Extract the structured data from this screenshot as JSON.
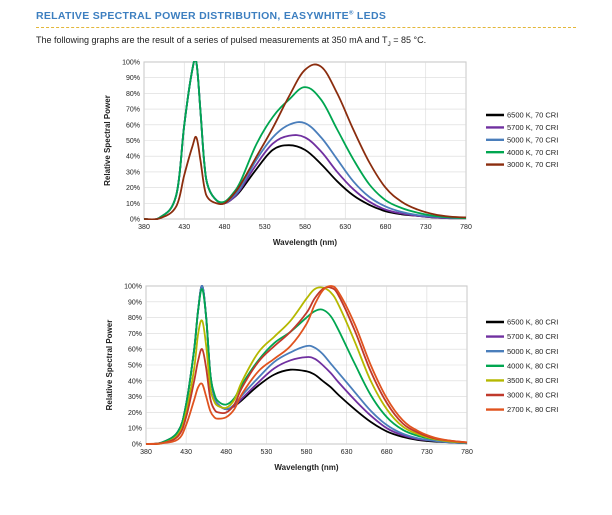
{
  "header": {
    "title_main": "RELATIVE SPECTRAL POWER DISTRIBUTION, EASYWHITE",
    "title_reg": "®",
    "title_tail": " LEDS",
    "intro_main": "The following graphs are the result of a series of pulsed measurements at 350 mA and T",
    "intro_sub": "J",
    "intro_tail": " = 85 °C.",
    "title_color": "#3d7fc0",
    "rule_color": "#e3b73a"
  },
  "chart_data": [
    {
      "type": "line",
      "xlabel": "Wavelength (nm)",
      "ylabel": "Relative Spectral Power",
      "xlim": [
        380,
        780
      ],
      "ylim": [
        0,
        100
      ],
      "x_ticks": [
        380,
        430,
        480,
        530,
        580,
        630,
        680,
        730,
        780
      ],
      "y_ticks": [
        0,
        10,
        20,
        30,
        40,
        50,
        60,
        70,
        80,
        90,
        100
      ],
      "y_tick_labels": [
        "0%",
        "10%",
        "20%",
        "30%",
        "40%",
        "50%",
        "60%",
        "70%",
        "80%",
        "90%",
        "100%"
      ],
      "grid": true,
      "legend": "right",
      "x": [
        380,
        400,
        420,
        430,
        440,
        445,
        450,
        455,
        460,
        470,
        480,
        490,
        500,
        520,
        540,
        560,
        580,
        600,
        620,
        640,
        660,
        680,
        700,
        720,
        740,
        760,
        780
      ],
      "series": [
        {
          "name": "6500 K, 70 CRI",
          "color": "#000000",
          "values": [
            0,
            1,
            15,
            60,
            95,
            100,
            70,
            35,
            20,
            12,
            10,
            13,
            18,
            32,
            44,
            47,
            44,
            35,
            24,
            15,
            9,
            5,
            3,
            2,
            1,
            0.5,
            0.5
          ]
        },
        {
          "name": "5700 K, 70 CRI",
          "color": "#7030a0",
          "values": [
            0,
            1,
            15,
            60,
            95,
            100,
            70,
            35,
            20,
            12,
            10,
            13,
            19,
            35,
            48,
            53,
            52,
            43,
            30,
            19,
            11,
            6,
            3.5,
            2,
            1,
            0.5,
            0.5
          ]
        },
        {
          "name": "5000 K, 70 CRI",
          "color": "#4a7ebb",
          "values": [
            0,
            1,
            15,
            60,
            95,
            100,
            70,
            35,
            20,
            12,
            10,
            14,
            20,
            38,
            52,
            60,
            61,
            52,
            38,
            24,
            14,
            8,
            4.5,
            2.5,
            1.5,
            0.8,
            0.5
          ]
        },
        {
          "name": "4000 K, 70 CRI",
          "color": "#00a650",
          "values": [
            0,
            1,
            15,
            60,
            95,
            100,
            70,
            35,
            20,
            12,
            11,
            16,
            24,
            48,
            65,
            76,
            84,
            76,
            57,
            38,
            22,
            12,
            7,
            4,
            2,
            1,
            0.5
          ]
        },
        {
          "name": "3000 K, 70 CRI",
          "color": "#8b2d0e",
          "values": [
            0,
            0.5,
            8,
            28,
            46,
            52,
            38,
            20,
            13,
            10,
            10,
            15,
            22,
            40,
            58,
            78,
            95,
            97,
            80,
            57,
            36,
            20,
            11,
            6,
            3,
            1.5,
            1
          ]
        }
      ]
    },
    {
      "type": "line",
      "xlabel": "Wavelength (nm)",
      "ylabel": "Relative Spectral Power",
      "xlim": [
        380,
        780
      ],
      "ylim": [
        0,
        100
      ],
      "x_ticks": [
        380,
        430,
        480,
        530,
        580,
        630,
        680,
        730,
        780
      ],
      "y_ticks": [
        0,
        10,
        20,
        30,
        40,
        50,
        60,
        70,
        80,
        90,
        100
      ],
      "y_tick_labels": [
        "0%",
        "10%",
        "20%",
        "30%",
        "40%",
        "50%",
        "60%",
        "70%",
        "80%",
        "90%",
        "100%"
      ],
      "grid": true,
      "legend": "right",
      "x": [
        380,
        400,
        420,
        430,
        440,
        445,
        450,
        455,
        460,
        465,
        470,
        480,
        490,
        500,
        520,
        540,
        560,
        580,
        590,
        600,
        610,
        620,
        640,
        660,
        680,
        700,
        720,
        740,
        760,
        780
      ],
      "series": [
        {
          "name": "6500 K, 80 CRI",
          "color": "#000000",
          "values": [
            0,
            1,
            8,
            25,
            60,
            85,
            100,
            80,
            45,
            30,
            25,
            22,
            24,
            28,
            37,
            44,
            47,
            46,
            44,
            40,
            36,
            31,
            22,
            14,
            8,
            4.5,
            2.5,
            1.5,
            1,
            0.5
          ]
        },
        {
          "name": "5700 K, 80 CRI",
          "color": "#7030a0",
          "values": [
            0,
            1,
            8,
            25,
            60,
            85,
            100,
            80,
            45,
            30,
            25,
            22,
            24,
            29,
            39,
            48,
            53,
            55,
            54,
            50,
            45,
            39,
            28,
            18,
            10,
            5.5,
            3,
            2,
            1,
            0.5
          ]
        },
        {
          "name": "5000 K, 80 CRI",
          "color": "#4a7ebb",
          "values": [
            0,
            1,
            8,
            25,
            60,
            85,
            100,
            80,
            45,
            30,
            25,
            22,
            25,
            31,
            42,
            52,
            58,
            62,
            61,
            57,
            51,
            45,
            33,
            21,
            12,
            6.5,
            3.5,
            2,
            1,
            0.5
          ]
        },
        {
          "name": "4000 K, 80 CRI",
          "color": "#00a650",
          "values": [
            0,
            1,
            8,
            25,
            60,
            85,
            98,
            80,
            45,
            32,
            27,
            25,
            29,
            38,
            53,
            64,
            71,
            80,
            84,
            85,
            81,
            72,
            51,
            31,
            17,
            9,
            5,
            3,
            1.5,
            0.8
          ]
        },
        {
          "name": "3500 K, 80 CRI",
          "color": "#b5b800",
          "values": [
            0,
            0.5,
            6,
            20,
            48,
            70,
            78,
            62,
            36,
            27,
            24,
            23,
            28,
            40,
            58,
            68,
            78,
            92,
            98,
            99,
            96,
            88,
            65,
            40,
            22,
            11,
            6,
            3,
            1.5,
            1
          ]
        },
        {
          "name": "3000 K, 80 CRI",
          "color": "#c0392b",
          "values": [
            0,
            0.5,
            5,
            17,
            40,
            53,
            60,
            48,
            29,
            22,
            20,
            20,
            25,
            36,
            52,
            62,
            71,
            83,
            92,
            98,
            99,
            94,
            72,
            46,
            26,
            13,
            7,
            3.5,
            2,
            1
          ]
        },
        {
          "name": "2700 K, 80 CRI",
          "color": "#e0531f",
          "values": [
            0,
            0.5,
            3,
            12,
            28,
            36,
            38,
            30,
            21,
            17,
            16,
            17,
            22,
            32,
            46,
            54,
            62,
            76,
            88,
            97,
            100,
            96,
            76,
            50,
            29,
            15,
            8,
            4,
            2,
            1
          ]
        }
      ]
    }
  ]
}
